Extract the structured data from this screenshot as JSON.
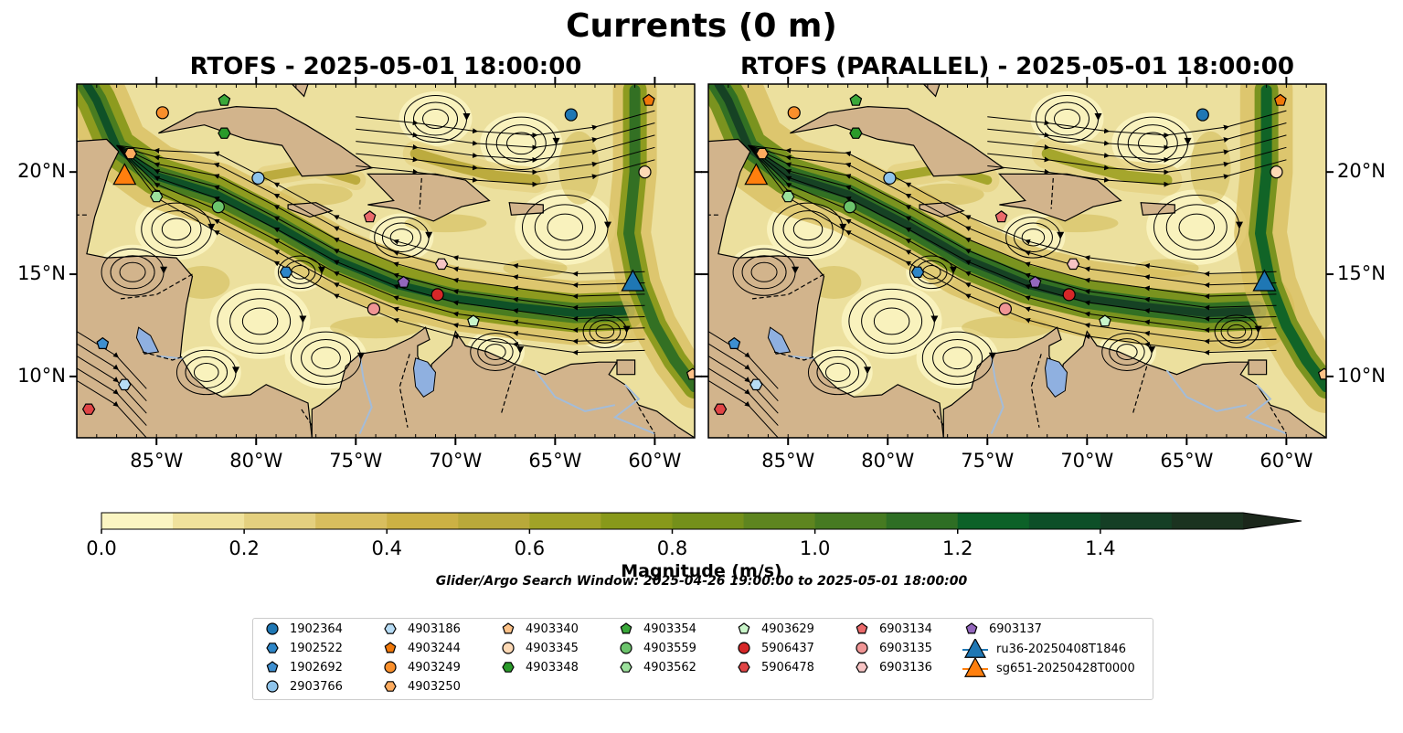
{
  "figure": {
    "title": "Currents (0 m)",
    "panels": [
      {
        "title": "RTOFS - 2025-05-01 18:00:00"
      },
      {
        "title": "RTOFS (PARALLEL) - 2025-05-01 18:00:00"
      }
    ],
    "lon_ticks": [
      "85°W",
      "80°W",
      "75°W",
      "70°W",
      "65°W",
      "60°W"
    ],
    "lat_ticks": [
      "20°N",
      "15°N",
      "10°N"
    ],
    "colors": {
      "land": "#d2b48c",
      "lakes": "#8fb0e0",
      "rivers": "#a3bcd9",
      "streamlines": "#000000"
    }
  },
  "colorbar": {
    "label": "Magnitude (m/s)",
    "ticks": [
      "0.0",
      "0.2",
      "0.4",
      "0.6",
      "0.8",
      "1.0",
      "1.2",
      "1.4"
    ],
    "range": [
      0,
      1.6
    ],
    "extend": "max",
    "colors": [
      "#fbf5c2",
      "#f0e29c",
      "#e4d07f",
      "#d8be5e",
      "#ccb144",
      "#b9a93a",
      "#a1a327",
      "#88991a",
      "#74901a",
      "#5e851f",
      "#467a21",
      "#2e6e24",
      "#0c6128",
      "#0d4f28",
      "#153f25",
      "#1b3320",
      "#1b271b"
    ]
  },
  "search_window": "Glider/Argo Search Window: 2025-04-26 19:00:00 to 2025-05-01 18:00:00",
  "legend": {
    "columns": [
      [
        {
          "label": "1902364",
          "marker": "circle",
          "color": "#1f77b4"
        },
        {
          "label": "1902522",
          "marker": "hexagon",
          "color": "#2e86c8"
        },
        {
          "label": "1902692",
          "marker": "pentagon",
          "color": "#3e8fd0"
        },
        {
          "label": "2903766",
          "marker": "circle",
          "color": "#8fc4eb"
        }
      ],
      [
        {
          "label": "4903186",
          "marker": "hexagon",
          "color": "#b7dcf5"
        },
        {
          "label": "4903244",
          "marker": "pentagon",
          "color": "#f0780a"
        },
        {
          "label": "4903249",
          "marker": "circle",
          "color": "#f98f2c"
        },
        {
          "label": "4903250",
          "marker": "hexagon",
          "color": "#fdab5f"
        }
      ],
      [
        {
          "label": "4903340",
          "marker": "pentagon",
          "color": "#fdc288"
        },
        {
          "label": "4903345",
          "marker": "circle",
          "color": "#fdd9b5"
        },
        {
          "label": "4903348",
          "marker": "hexagon",
          "color": "#2a9a2a"
        }
      ],
      [
        {
          "label": "4903354",
          "marker": "pentagon",
          "color": "#3aa83a"
        },
        {
          "label": "4903559",
          "marker": "circle",
          "color": "#6cc46c"
        },
        {
          "label": "4903562",
          "marker": "hexagon",
          "color": "#9ce09c"
        }
      ],
      [
        {
          "label": "4903629",
          "marker": "pentagon",
          "color": "#c9f5c9"
        },
        {
          "label": "5906437",
          "marker": "circle",
          "color": "#d62728"
        },
        {
          "label": "5906478",
          "marker": "hexagon",
          "color": "#e04546"
        }
      ],
      [
        {
          "label": "6903134",
          "marker": "pentagon",
          "color": "#eb6a6b"
        },
        {
          "label": "6903135",
          "marker": "circle",
          "color": "#f09595"
        },
        {
          "label": "6903136",
          "marker": "hexagon",
          "color": "#f7c4c4"
        }
      ],
      [
        {
          "label": "6903137",
          "marker": "pentagon",
          "color": "#9467bd"
        },
        {
          "label": "ru36-20250408T1846",
          "marker": "triangle",
          "color": "#1f77b4"
        },
        {
          "label": "sg651-20250428T0000",
          "marker": "triangle",
          "color": "#ff7f0e"
        }
      ]
    ]
  },
  "map_extent": {
    "lon": [
      -89,
      -58
    ],
    "lat": [
      7,
      24.3
    ]
  },
  "floats": [
    {
      "id": "1902364",
      "lon": -64.2,
      "lat": 22.8
    },
    {
      "id": "1902522",
      "lon": -78.5,
      "lat": 15.1
    },
    {
      "id": "1902692",
      "lon": -87.7,
      "lat": 11.6
    },
    {
      "id": "2903766",
      "lon": -79.9,
      "lat": 19.7
    },
    {
      "id": "4903186",
      "lon": -86.6,
      "lat": 9.6
    },
    {
      "id": "4903244",
      "lon": -60.3,
      "lat": 23.5
    },
    {
      "id": "4903249",
      "lon": -84.7,
      "lat": 22.9
    },
    {
      "id": "4903250",
      "lon": -86.3,
      "lat": 20.9
    },
    {
      "id": "4903340",
      "lon": -58.1,
      "lat": 10.1
    },
    {
      "id": "4903345",
      "lon": -60.5,
      "lat": 20.0
    },
    {
      "id": "4903348",
      "lon": -81.6,
      "lat": 21.9
    },
    {
      "id": "4903354",
      "lon": -81.6,
      "lat": 23.5
    },
    {
      "id": "4903559",
      "lon": -81.9,
      "lat": 18.3
    },
    {
      "id": "4903562",
      "lon": -85.0,
      "lat": 18.8
    },
    {
      "id": "4903629",
      "lon": -69.1,
      "lat": 12.7
    },
    {
      "id": "5906437",
      "lon": -70.9,
      "lat": 14.0
    },
    {
      "id": "5906478",
      "lon": -88.4,
      "lat": 8.4
    },
    {
      "id": "6903134",
      "lon": -74.3,
      "lat": 17.8
    },
    {
      "id": "6903135",
      "lon": -74.1,
      "lat": 13.3
    },
    {
      "id": "6903136",
      "lon": -70.7,
      "lat": 15.5
    },
    {
      "id": "6903137",
      "lon": -72.6,
      "lat": 14.6
    }
  ],
  "gliders": [
    {
      "id": "ru36-20250408T1846",
      "lon": -61.1,
      "lat": 14.6
    },
    {
      "id": "sg651-20250428T0000",
      "lon": -86.6,
      "lat": 19.8
    }
  ]
}
